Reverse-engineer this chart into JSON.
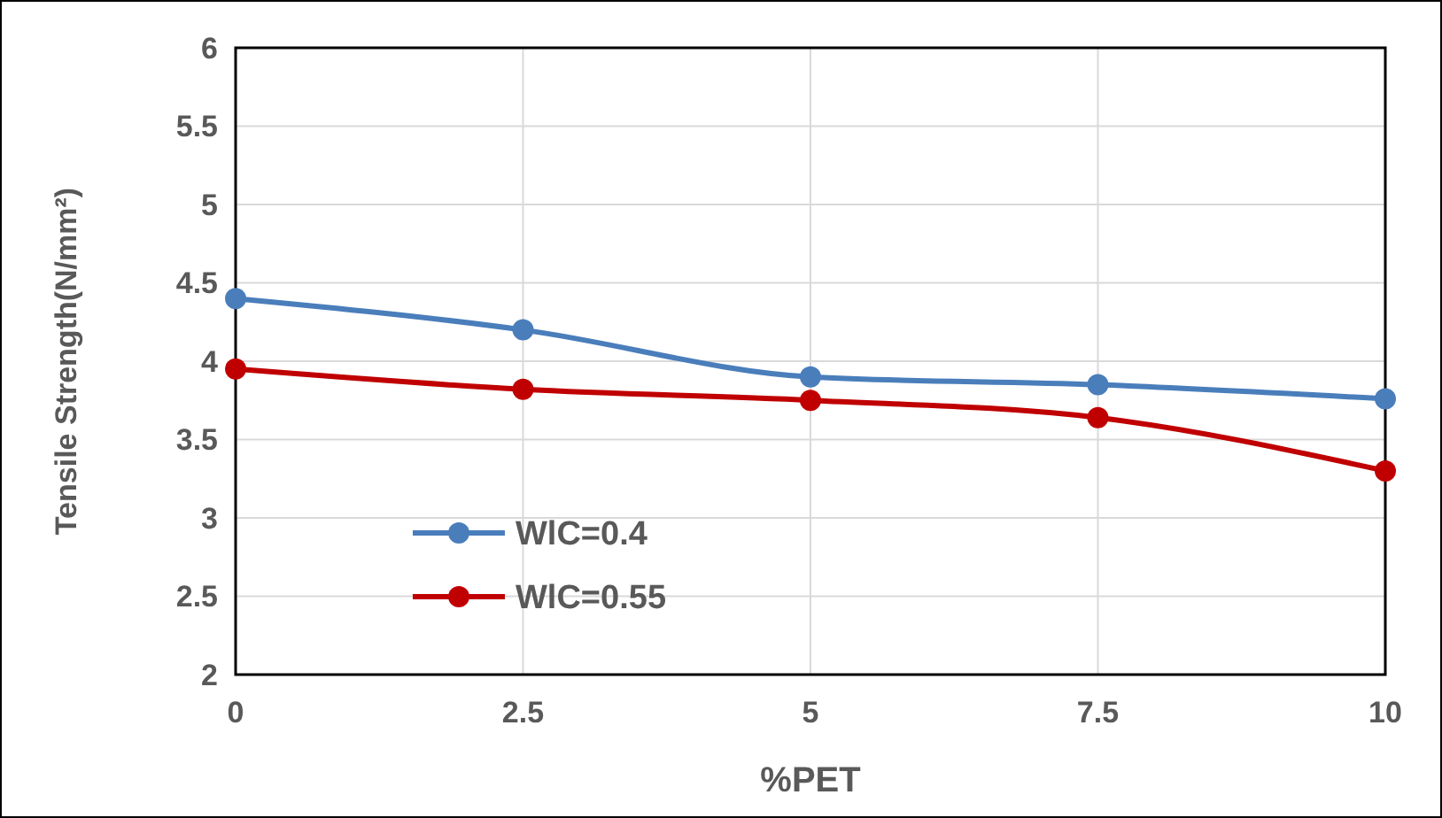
{
  "chart_data": {
    "type": "line",
    "xlabel": "%PET",
    "ylabel": "Tensile Strength(N/mm²)",
    "x": [
      0,
      2.5,
      5,
      7.5,
      10
    ],
    "xlim": [
      0,
      10
    ],
    "xticks": [
      0,
      2.5,
      5,
      7.5,
      10
    ],
    "ylim": [
      2,
      6
    ],
    "yticks": [
      2,
      2.5,
      3,
      3.5,
      4,
      4.5,
      5,
      5.5,
      6
    ],
    "grid": true,
    "legend": "bottom left",
    "marker": "circle",
    "line_style": "solid",
    "series": [
      {
        "name": "WlC=0.4",
        "color": "#4a7ebb",
        "values": [
          4.4,
          4.2,
          3.9,
          3.85,
          3.76
        ]
      },
      {
        "name": "WlC=0.55",
        "color": "#c00000",
        "values": [
          3.95,
          3.82,
          3.75,
          3.64,
          3.3
        ]
      }
    ]
  }
}
